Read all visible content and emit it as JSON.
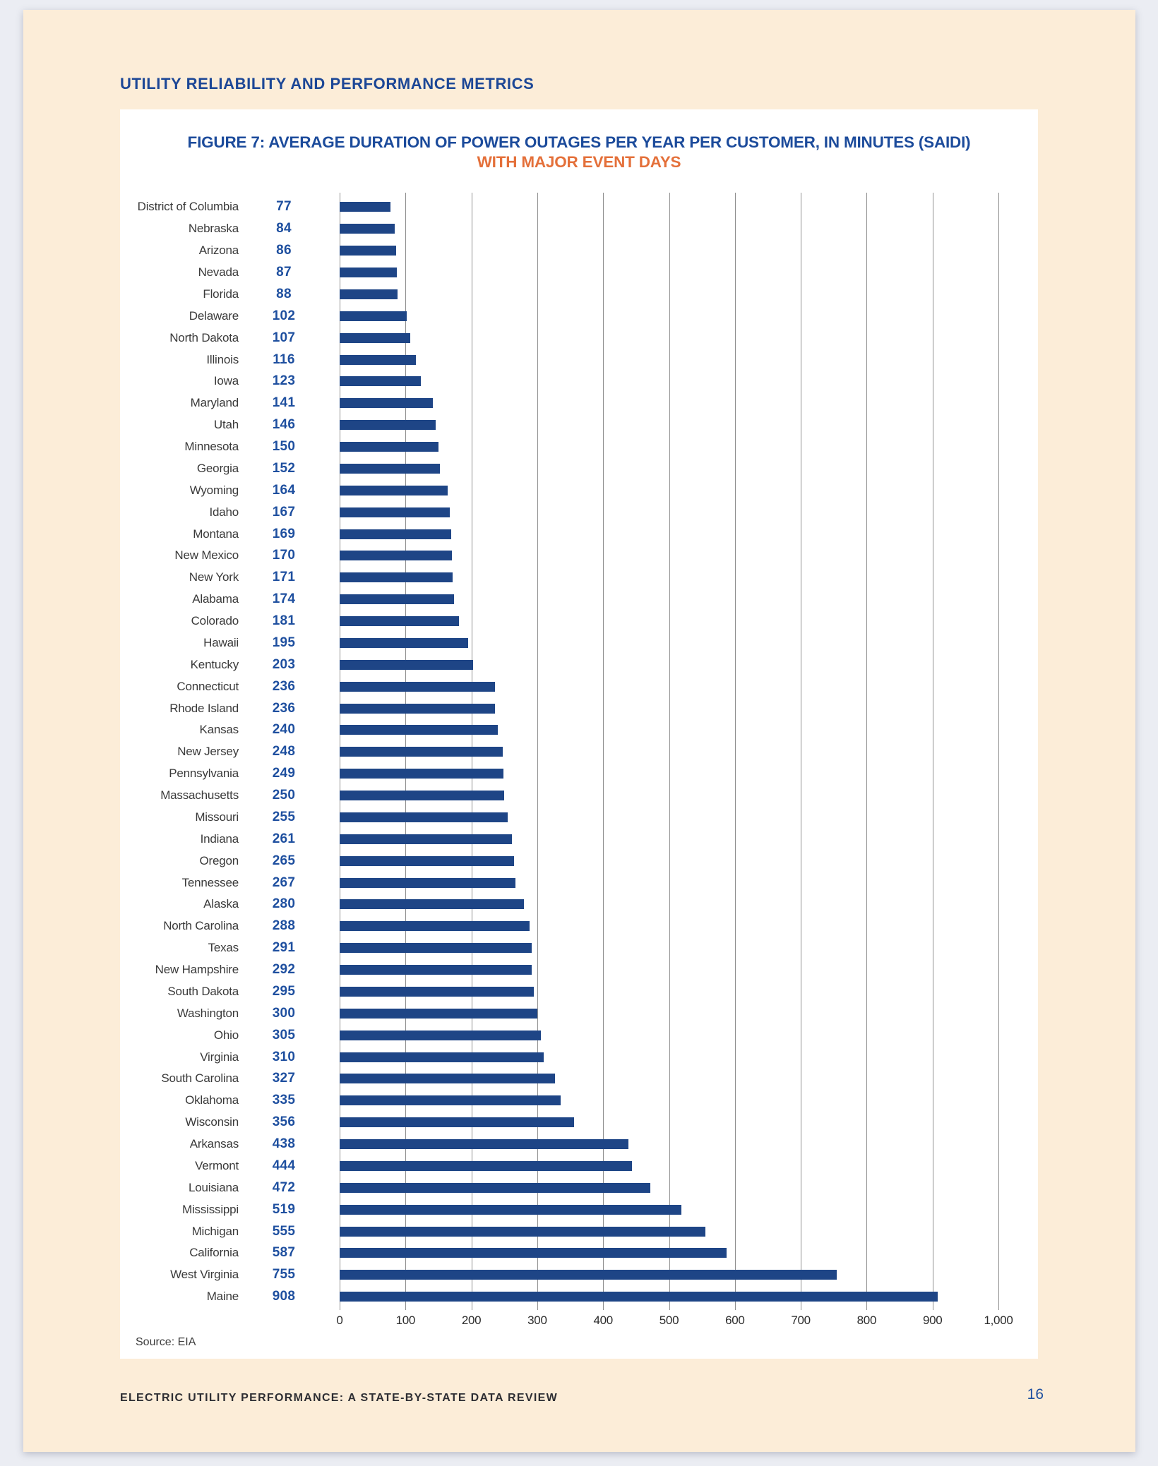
{
  "page": {
    "header": "UTILITY RELIABILITY AND PERFORMANCE METRICS",
    "footer": "ELECTRIC UTILITY PERFORMANCE: A STATE-BY-STATE DATA REVIEW",
    "page_number": "16"
  },
  "figure": {
    "title": "FIGURE 7: AVERAGE DURATION OF POWER OUTAGES PER YEAR PER CUSTOMER, IN MINUTES (SAIDI)",
    "subtitle": "WITH MAJOR EVENT DAYS",
    "source": "Source: EIA"
  },
  "colors": {
    "bar": "#1e4586",
    "value_label": "#1e4f9f",
    "title_navy": "#1c4b9b",
    "subtitle_orange": "#e4703a",
    "page_background": "#fcedd8",
    "outer_background": "#ebedf3",
    "gridline": "#8f8f8f"
  },
  "chart_data": {
    "type": "bar",
    "orientation": "horizontal",
    "title": "FIGURE 7: AVERAGE DURATION OF POWER OUTAGES PER YEAR PER CUSTOMER, IN MINUTES (SAIDI)",
    "subtitle": "WITH MAJOR EVENT DAYS",
    "xlabel": "",
    "ylabel": "",
    "xlim": [
      0,
      1000
    ],
    "grid": true,
    "x_ticks": [
      "0",
      "100",
      "200",
      "300",
      "400",
      "500",
      "600",
      "700",
      "800",
      "900",
      "1,000"
    ],
    "x_tick_values": [
      0,
      100,
      200,
      300,
      400,
      500,
      600,
      700,
      800,
      900,
      1000
    ],
    "categories": [
      "District of Columbia",
      "Nebraska",
      "Arizona",
      "Nevada",
      "Florida",
      "Delaware",
      "North Dakota",
      "Illinois",
      "Iowa",
      "Maryland",
      "Utah",
      "Minnesota",
      "Georgia",
      "Wyoming",
      "Idaho",
      "Montana",
      "New Mexico",
      "New York",
      "Alabama",
      "Colorado",
      "Hawaii",
      "Kentucky",
      "Connecticut",
      "Rhode Island",
      "Kansas",
      "New Jersey",
      "Pennsylvania",
      "Massachusetts",
      "Missouri",
      "Indiana",
      "Oregon",
      "Tennessee",
      "Alaska",
      "North Carolina",
      "Texas",
      "New Hampshire",
      "South Dakota",
      "Washington",
      "Ohio",
      "Virginia",
      "South Carolina",
      "Oklahoma",
      "Wisconsin",
      "Arkansas",
      "Vermont",
      "Louisiana",
      "Mississippi",
      "Michigan",
      "California",
      "West Virginia",
      "Maine"
    ],
    "values": [
      77,
      84,
      86,
      87,
      88,
      102,
      107,
      116,
      123,
      141,
      146,
      150,
      152,
      164,
      167,
      169,
      170,
      171,
      174,
      181,
      195,
      203,
      236,
      236,
      240,
      248,
      249,
      250,
      255,
      261,
      265,
      267,
      280,
      288,
      291,
      292,
      295,
      300,
      305,
      310,
      327,
      335,
      356,
      438,
      444,
      472,
      519,
      555,
      587,
      755,
      908
    ],
    "source": "Source: EIA"
  }
}
